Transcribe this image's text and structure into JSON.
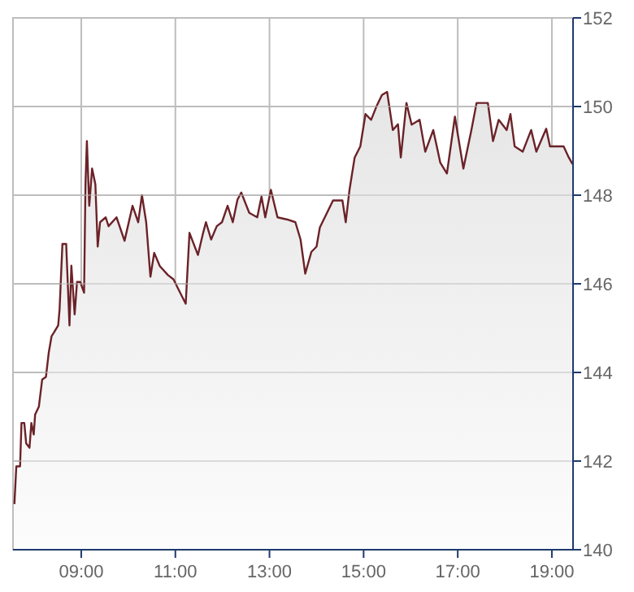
{
  "chart_data": {
    "type": "area",
    "x": [
      7.58,
      7.62,
      7.7,
      7.73,
      7.79,
      7.83,
      7.9,
      7.94,
      7.99,
      8.02,
      8.1,
      8.17,
      8.25,
      8.31,
      8.37,
      8.42,
      8.51,
      8.54,
      8.6,
      8.68,
      8.75,
      8.79,
      8.86,
      8.91,
      8.98,
      9.06,
      9.09,
      9.12,
      9.17,
      9.23,
      9.3,
      9.35,
      9.4,
      9.52,
      9.58,
      9.75,
      9.92,
      10.09,
      10.21,
      10.29,
      10.38,
      10.47,
      10.55,
      10.67,
      10.84,
      10.96,
      11.13,
      11.22,
      11.3,
      11.48,
      11.59,
      11.65,
      11.76,
      11.88,
      11.99,
      12.11,
      12.22,
      12.32,
      12.4,
      12.57,
      12.74,
      12.83,
      12.91,
      13.03,
      13.17,
      13.38,
      13.55,
      13.66,
      13.76,
      13.89,
      14.0,
      14.07,
      14.35,
      14.55,
      14.62,
      14.7,
      14.81,
      14.93,
      15.04,
      15.16,
      15.28,
      15.39,
      15.5,
      15.62,
      15.73,
      15.79,
      15.91,
      16.02,
      16.19,
      16.31,
      16.48,
      16.63,
      16.77,
      16.94,
      17.12,
      17.29,
      17.4,
      17.64,
      17.75,
      17.87,
      18.04,
      18.12,
      18.21,
      18.38,
      18.56,
      18.67,
      18.88,
      18.96,
      19.25,
      19.36,
      19.44
    ],
    "series": [
      {
        "color": "#6b2228",
        "values": [
          141.03,
          141.88,
          141.88,
          142.86,
          142.86,
          142.4,
          142.3,
          142.86,
          142.6,
          143.05,
          143.23,
          143.84,
          143.9,
          144.45,
          144.82,
          144.9,
          145.06,
          145.43,
          146.9,
          146.9,
          145.06,
          146.41,
          145.31,
          146.04,
          146.04,
          145.8,
          148.25,
          149.22,
          147.76,
          148.6,
          148.25,
          146.84,
          147.39,
          147.5,
          147.3,
          147.5,
          146.97,
          147.76,
          147.39,
          148.0,
          147.39,
          146.16,
          146.7,
          146.4,
          146.2,
          146.1,
          145.74,
          145.55,
          147.15,
          146.65,
          147.15,
          147.39,
          147.0,
          147.3,
          147.39,
          147.76,
          147.39,
          147.9,
          148.06,
          147.6,
          147.5,
          147.97,
          147.5,
          148.12,
          147.5,
          147.45,
          147.39,
          147.0,
          146.23,
          146.72,
          146.84,
          147.27,
          147.88,
          147.88,
          147.39,
          148.12,
          148.85,
          149.1,
          149.83,
          149.7,
          150.02,
          150.26,
          150.33,
          149.47,
          149.6,
          148.85,
          150.08,
          149.59,
          149.7,
          148.98,
          149.47,
          148.73,
          148.49,
          149.77,
          148.6,
          149.47,
          150.08,
          150.08,
          149.22,
          149.7,
          149.47,
          149.83,
          149.1,
          148.98,
          149.47,
          148.98,
          149.5,
          149.1,
          149.1,
          148.85,
          148.7
        ]
      }
    ],
    "xlim": [
      7.55,
      19.45
    ],
    "ylim": [
      140,
      152
    ],
    "xticks": [
      {
        "value": 9,
        "label": "09:00"
      },
      {
        "value": 11,
        "label": "11:00"
      },
      {
        "value": 13,
        "label": "13:00"
      },
      {
        "value": 15,
        "label": "15:00"
      },
      {
        "value": 17,
        "label": "17:00"
      },
      {
        "value": 19,
        "label": "19:00"
      }
    ],
    "yticks": [
      140,
      142,
      144,
      146,
      148,
      150,
      152
    ],
    "grid": true,
    "line_style": "solid",
    "marker": "none"
  }
}
